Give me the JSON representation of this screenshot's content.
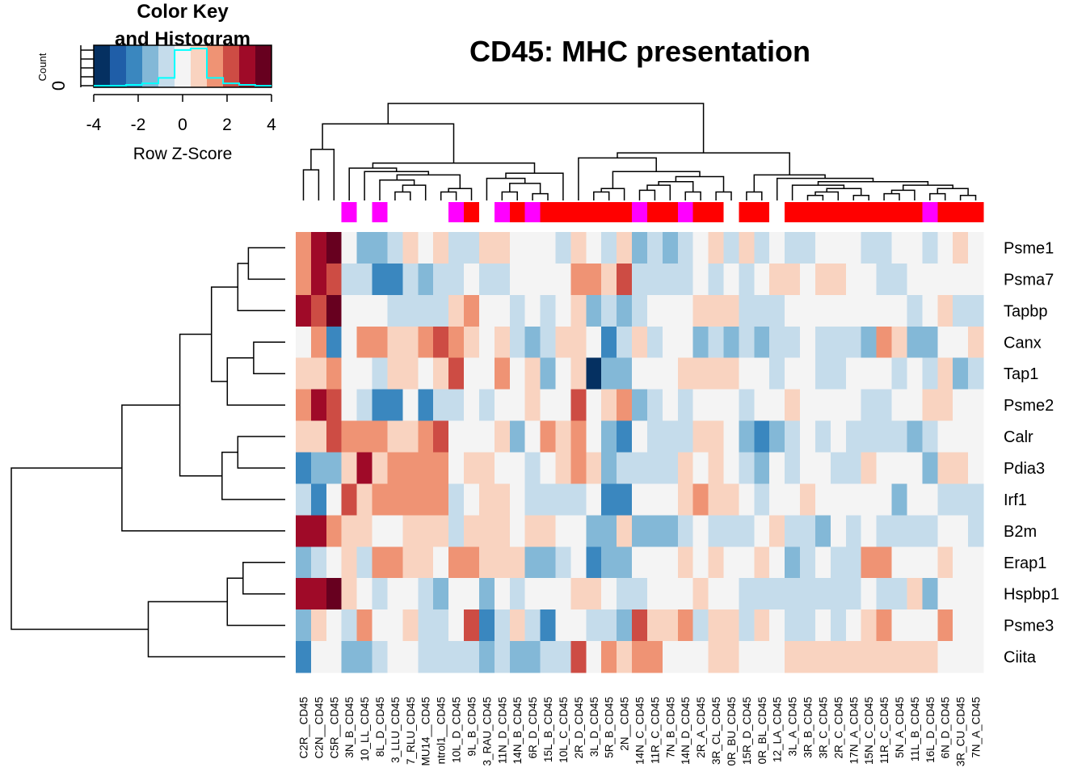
{
  "chart_data": {
    "type": "heatmap",
    "title": "CD45: MHC presentation",
    "color_key": {
      "title_line1": "Color Key",
      "title_line2": "and Histogram",
      "xlabel": "Row Z-Score",
      "ylabel": "Count",
      "y_tick": "0",
      "x_ticks": [
        "-4",
        "-2",
        "0",
        "2",
        "4"
      ],
      "range": [
        -4,
        4
      ],
      "bins": [
        -4,
        -3.27,
        -2.55,
        -1.82,
        -1.09,
        -0.36,
        0.36,
        1.09,
        1.82,
        2.55,
        3.27,
        4
      ],
      "colors": [
        "#053061",
        "#1f5ea8",
        "#3a87bf",
        "#83b8d7",
        "#c5dceb",
        "#f4f4f4",
        "#f9d3c0",
        "#ef9374",
        "#cd4c44",
        "#9f0a28",
        "#67001f"
      ],
      "histogram_counts": [
        0,
        0,
        1,
        3,
        10,
        46,
        48,
        10,
        3,
        1,
        0
      ],
      "histogram_color": "#00ffff"
    },
    "rows": [
      "Psme1",
      "Psma7",
      "Tapbp",
      "Canx",
      "Tap1",
      "Psme2",
      "Calr",
      "Pdia3",
      "Irf1",
      "B2m",
      "Erap1",
      "Hspbp1",
      "Psme3",
      "Ciita"
    ],
    "columns": [
      "C2R__CD45",
      "C2N__CD45",
      "C5R__CD45",
      "3N_B_CD45",
      "10_LL_CD45",
      "8L_D_CD45",
      "3_LLU_CD45",
      "7_RLU_CD45",
      "MU14__CD45",
      "ntrol1__CD45",
      "10L_D_CD45",
      "9L_B_CD45",
      "3_RAU_CD45",
      "11N_D_CD45",
      "14N_B_CD45",
      "6R_D_CD45",
      "15L_B_CD45",
      "10L_C_CD45",
      "2R_D_CD45",
      "3L_D_CD45",
      "5R_B_CD45",
      "2N__CD45",
      "14N_C_CD45",
      "11R_C_CD45",
      "7N_B_CD45",
      "14N_D_CD45",
      "2R_A_CD45",
      "3R_CL_CD45",
      "0R_BU_CD45",
      "15R_D_CD45",
      "0R_BL_CD45",
      "12_LA_CD45",
      "3L_A_CD45",
      "3R_B_CD45",
      "3R_C_CD45",
      "2R_C_CD45",
      "17N_A_CD45",
      "15N_C_CD45",
      "11R_C_CD45",
      "5N_A_CD45",
      "11L_B_CD45",
      "16L_D_CD45",
      "6N_D_CD45",
      "3R_CU_CD45",
      "7N_A_CD45"
    ],
    "column_groups": [
      "none",
      "none",
      "none",
      "magenta",
      "none",
      "magenta",
      "none",
      "none",
      "none",
      "none",
      "magenta",
      "red",
      "none",
      "magenta",
      "red",
      "magenta",
      "red",
      "red",
      "red",
      "red",
      "red",
      "red",
      "magenta",
      "red",
      "red",
      "magenta",
      "red",
      "red",
      "none",
      "red",
      "red",
      "none",
      "red",
      "red",
      "red",
      "red",
      "red",
      "red",
      "red",
      "red",
      "red",
      "magenta",
      "red",
      "red",
      "red"
    ],
    "group_colors": {
      "magenta": "#ff00ff",
      "red": "#ff0000",
      "none": "#ffffff"
    },
    "values": [
      [
        1.6,
        3.2,
        4.0,
        0.0,
        -1.3,
        -1.3,
        -0.6,
        0.6,
        0.0,
        0.6,
        -0.6,
        -0.6,
        0.6,
        0.6,
        0.0,
        0.0,
        0.0,
        -0.6,
        0.6,
        0.0,
        -0.6,
        0.6,
        -1.3,
        -0.6,
        -1.3,
        -0.6,
        0.0,
        0.6,
        -0.6,
        0.6,
        -0.6,
        0.0,
        -0.6,
        -0.6,
        0.0,
        0.0,
        0.0,
        -0.6,
        -0.6,
        0.0,
        0.0,
        -0.6,
        0.0,
        0.6,
        0.0
      ],
      [
        1.6,
        3.2,
        2.4,
        -0.6,
        -0.6,
        -2.2,
        -2.2,
        -0.6,
        -1.3,
        -0.6,
        -0.6,
        0.0,
        -0.6,
        -0.6,
        0.0,
        0.0,
        0.0,
        0.0,
        1.6,
        1.6,
        0.6,
        2.4,
        -0.6,
        -0.6,
        -0.6,
        -0.6,
        0.0,
        -0.6,
        0.0,
        -0.6,
        0.0,
        0.6,
        0.6,
        0.0,
        0.6,
        0.6,
        0.0,
        0.0,
        -0.6,
        -0.6,
        0.0,
        0.0,
        0.0,
        0.0,
        0.0
      ],
      [
        3.2,
        2.4,
        4.0,
        0.0,
        0.0,
        0.0,
        -0.6,
        -0.6,
        -0.6,
        -0.6,
        0.6,
        1.6,
        0.0,
        0.0,
        -0.6,
        0.0,
        -0.6,
        0.0,
        0.6,
        -1.3,
        -0.6,
        -1.3,
        -0.6,
        0.0,
        0.0,
        0.0,
        0.6,
        0.6,
        0.6,
        -0.6,
        -0.6,
        -0.6,
        0.0,
        0.0,
        0.0,
        0.0,
        0.0,
        0.0,
        0.0,
        0.0,
        -0.6,
        0.0,
        0.6,
        -0.6,
        -0.6
      ],
      [
        0.0,
        1.6,
        -2.2,
        0.0,
        1.6,
        1.6,
        0.6,
        0.6,
        1.6,
        2.4,
        1.6,
        0.6,
        0.0,
        0.6,
        -0.6,
        -1.3,
        -0.6,
        0.6,
        0.6,
        0.0,
        -2.2,
        -0.6,
        0.6,
        -0.6,
        0.0,
        0.0,
        -1.3,
        -0.6,
        -1.3,
        -0.6,
        -1.3,
        -0.6,
        -0.6,
        0.0,
        -0.6,
        -0.6,
        -0.6,
        -1.3,
        1.6,
        0.6,
        -1.3,
        -1.3,
        0.0,
        0.0,
        0.6
      ],
      [
        0.6,
        0.6,
        1.6,
        0.0,
        0.0,
        -0.6,
        0.6,
        0.6,
        0.0,
        0.6,
        2.4,
        0.0,
        0.0,
        1.6,
        0.0,
        0.6,
        -1.3,
        0.0,
        0.6,
        -4.0,
        -1.3,
        -1.3,
        0.0,
        0.0,
        0.0,
        0.6,
        0.6,
        0.6,
        0.6,
        0.0,
        0.0,
        -0.6,
        0.0,
        0.0,
        -0.6,
        -0.6,
        0.0,
        0.0,
        0.0,
        -0.6,
        0.0,
        -0.6,
        0.6,
        -1.3,
        -0.6
      ],
      [
        1.6,
        3.2,
        2.4,
        0.0,
        -0.6,
        -2.2,
        -2.2,
        0.0,
        -2.2,
        -0.6,
        -0.6,
        0.0,
        -0.6,
        0.0,
        0.0,
        0.6,
        0.0,
        0.0,
        2.4,
        0.0,
        0.6,
        1.6,
        -1.3,
        -0.6,
        0.0,
        -0.6,
        0.0,
        0.0,
        0.0,
        -0.6,
        0.0,
        0.0,
        0.6,
        0.0,
        0.0,
        0.0,
        0.0,
        -0.6,
        -0.6,
        0.0,
        0.0,
        0.6,
        0.6,
        0.0,
        0.0
      ],
      [
        0.6,
        0.6,
        2.4,
        1.6,
        1.6,
        1.6,
        0.6,
        0.6,
        1.6,
        2.4,
        0.0,
        0.0,
        0.0,
        0.6,
        -1.3,
        0.0,
        1.6,
        0.6,
        1.6,
        0.0,
        -1.3,
        -2.2,
        0.0,
        -0.6,
        -0.6,
        -0.6,
        0.6,
        0.6,
        0.0,
        -1.3,
        -2.2,
        -1.3,
        -0.6,
        0.0,
        -0.6,
        0.0,
        -0.6,
        -0.6,
        -0.6,
        -0.6,
        -1.3,
        -0.6,
        0.0,
        0.0,
        0.0
      ],
      [
        -2.2,
        -1.3,
        -1.3,
        0.6,
        3.2,
        0.6,
        1.6,
        1.6,
        1.6,
        1.6,
        0.0,
        0.6,
        0.6,
        0.0,
        0.0,
        -0.6,
        0.0,
        0.6,
        1.6,
        0.6,
        -1.3,
        -0.6,
        -0.6,
        -0.6,
        -0.6,
        0.6,
        0.0,
        0.6,
        0.0,
        -0.6,
        -1.3,
        0.0,
        -0.6,
        0.0,
        0.0,
        -0.6,
        -0.6,
        0.6,
        0.0,
        0.0,
        0.0,
        -1.3,
        0.6,
        0.6,
        0.0
      ],
      [
        -0.6,
        -2.2,
        0.0,
        2.4,
        0.6,
        1.6,
        1.6,
        1.6,
        1.6,
        1.6,
        -0.6,
        0.0,
        0.6,
        0.6,
        0.0,
        -0.6,
        -0.6,
        -0.6,
        -0.6,
        0.0,
        -2.2,
        -2.2,
        0.0,
        0.0,
        0.0,
        0.6,
        1.6,
        0.6,
        0.6,
        0.0,
        -0.6,
        0.0,
        0.0,
        0.6,
        0.0,
        0.0,
        0.0,
        0.0,
        0.0,
        -1.3,
        0.0,
        0.0,
        -0.6,
        -0.6,
        -0.6
      ],
      [
        3.2,
        3.2,
        1.6,
        0.6,
        0.6,
        0.0,
        0.0,
        0.6,
        0.6,
        0.6,
        -0.6,
        0.6,
        0.6,
        0.6,
        0.0,
        0.6,
        0.6,
        0.0,
        0.0,
        -1.3,
        -1.3,
        0.6,
        -1.3,
        -1.3,
        -1.3,
        -0.6,
        0.0,
        -0.6,
        -0.6,
        -0.6,
        0.0,
        0.6,
        -0.6,
        -0.6,
        -1.3,
        0.0,
        -0.6,
        0.0,
        -0.6,
        -0.6,
        -0.6,
        -0.6,
        0.0,
        0.0,
        -0.6
      ],
      [
        -1.3,
        -0.6,
        0.0,
        0.6,
        -0.6,
        1.6,
        1.6,
        0.6,
        0.6,
        0.0,
        1.6,
        1.6,
        0.6,
        0.6,
        0.6,
        -1.3,
        -1.3,
        -0.6,
        0.0,
        -2.2,
        -1.3,
        -1.3,
        0.0,
        0.0,
        0.0,
        0.6,
        0.0,
        0.6,
        0.0,
        0.0,
        0.6,
        0.0,
        -1.3,
        -0.6,
        0.0,
        -0.6,
        -0.6,
        1.6,
        1.6,
        0.0,
        0.0,
        0.0,
        0.6,
        0.0,
        0.0
      ],
      [
        3.2,
        3.2,
        4.0,
        0.6,
        0.0,
        -0.6,
        0.0,
        0.0,
        -0.6,
        -1.3,
        0.0,
        0.0,
        -1.3,
        0.0,
        -0.6,
        0.0,
        0.0,
        0.0,
        0.6,
        0.6,
        0.0,
        -0.6,
        -0.6,
        0.0,
        0.0,
        0.0,
        0.6,
        0.0,
        0.0,
        -0.6,
        -0.6,
        -0.6,
        -0.6,
        -0.6,
        -0.6,
        -0.6,
        -0.6,
        0.0,
        -0.6,
        -0.6,
        0.6,
        -1.3,
        0.0,
        0.0,
        0.0
      ],
      [
        -1.3,
        0.6,
        0.0,
        -0.6,
        1.6,
        0.0,
        0.0,
        0.6,
        -0.6,
        -0.6,
        0.0,
        2.4,
        -2.2,
        -0.6,
        0.6,
        -0.6,
        -2.2,
        0.0,
        0.0,
        -0.6,
        -0.6,
        -1.3,
        2.4,
        0.6,
        0.6,
        1.6,
        -0.6,
        0.6,
        0.6,
        -0.6,
        0.6,
        0.0,
        -0.6,
        -0.6,
        0.0,
        -0.6,
        0.0,
        0.6,
        1.6,
        0.0,
        0.0,
        0.0,
        1.6,
        0.0,
        0.0
      ],
      [
        -2.2,
        0.0,
        0.0,
        -1.3,
        -1.3,
        -0.6,
        0.0,
        0.0,
        -0.6,
        -0.6,
        -0.6,
        -0.6,
        -1.3,
        -0.6,
        -1.3,
        -1.3,
        -0.6,
        -0.6,
        2.4,
        0.0,
        1.6,
        0.6,
        1.6,
        1.6,
        0.0,
        0.0,
        0.0,
        0.6,
        0.6,
        0.0,
        0.0,
        0.0,
        0.6,
        0.6,
        0.6,
        0.6,
        0.6,
        0.6,
        0.6,
        0.6,
        0.6,
        0.6,
        0.0,
        0.0,
        0.0
      ]
    ],
    "row_dendrogram": [
      [
        0,
        1,
        0.35
      ],
      [
        2,
        14,
        0.45
      ],
      [
        3,
        4,
        0.3
      ],
      [
        16,
        5,
        0.55
      ],
      [
        15,
        17,
        0.7
      ],
      [
        6,
        7,
        0.45
      ],
      [
        19,
        8,
        0.6
      ],
      [
        18,
        20,
        1.0
      ],
      [
        21,
        9,
        1.55
      ],
      [
        10,
        11,
        0.4
      ],
      [
        23,
        12,
        0.55
      ],
      [
        24,
        13,
        1.3
      ],
      [
        22,
        25,
        2.6
      ]
    ],
    "col_dendrogram": [
      [
        0,
        1,
        0.18
      ],
      [
        45,
        2,
        0.3
      ],
      [
        9,
        10,
        0.05
      ],
      [
        47,
        11,
        0.07
      ],
      [
        6,
        7,
        0.05
      ],
      [
        49,
        8,
        0.09
      ],
      [
        5,
        50,
        0.12
      ],
      [
        51,
        48,
        0.15
      ],
      [
        4,
        52,
        0.17
      ],
      [
        3,
        53,
        0.19
      ],
      [
        13,
        14,
        0.05
      ],
      [
        15,
        16,
        0.04
      ],
      [
        55,
        56,
        0.1
      ],
      [
        12,
        57,
        0.13
      ],
      [
        58,
        17,
        0.16
      ],
      [
        54,
        59,
        0.22
      ],
      [
        46,
        60,
        0.45
      ],
      [
        19,
        20,
        0.05
      ],
      [
        62,
        21,
        0.07
      ],
      [
        22,
        23,
        0.06
      ],
      [
        64,
        24,
        0.09
      ],
      [
        25,
        26,
        0.05
      ],
      [
        65,
        66,
        0.11
      ],
      [
        27,
        28,
        0.05
      ],
      [
        67,
        68,
        0.14
      ],
      [
        63,
        69,
        0.17
      ],
      [
        18,
        70,
        0.25
      ],
      [
        33,
        34,
        0.03
      ],
      [
        72,
        35,
        0.05
      ],
      [
        36,
        37,
        0.03
      ],
      [
        73,
        74,
        0.07
      ],
      [
        32,
        75,
        0.09
      ],
      [
        38,
        39,
        0.04
      ],
      [
        77,
        40,
        0.06
      ],
      [
        41,
        42,
        0.04
      ],
      [
        43,
        44,
        0.03
      ],
      [
        79,
        80,
        0.07
      ],
      [
        78,
        81,
        0.09
      ],
      [
        76,
        82,
        0.11
      ],
      [
        31,
        83,
        0.13
      ],
      [
        29,
        30,
        0.05
      ],
      [
        85,
        84,
        0.15
      ],
      [
        71,
        86,
        0.28
      ],
      [
        61,
        87,
        0.57
      ]
    ]
  }
}
